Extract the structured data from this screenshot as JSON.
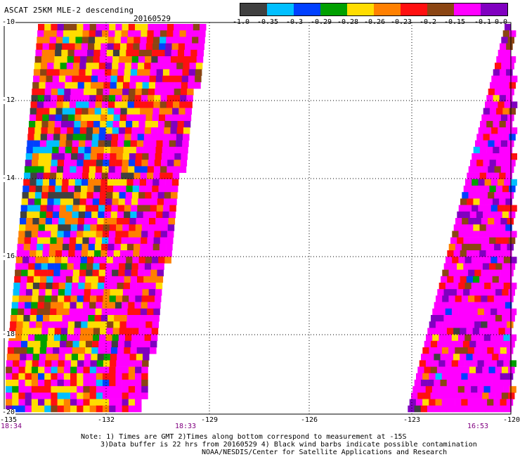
{
  "header": {
    "title": "ASCAT 25KM MLE-2 descending",
    "date": "20160529"
  },
  "colorbar": {
    "colors": [
      "#404040",
      "#00bfff",
      "#0040ff",
      "#00a000",
      "#ffdd00",
      "#ff8000",
      "#ff1010",
      "#8b4513",
      "#ff00ff",
      "#8000c0"
    ],
    "labels": [
      "-1.0",
      "-0.35",
      "-0.3",
      "-0.29",
      "-0.28",
      "-0.26",
      "-0.23",
      "-0.2",
      "-0.15",
      "-0.1",
      "0.0"
    ]
  },
  "axes": {
    "lat_ticks": [
      "-10",
      "-12",
      "-14",
      "-16",
      "-18",
      "-20"
    ],
    "lon_ticks": [
      "-135",
      "-132",
      "-129",
      "-126",
      "-123",
      "-120"
    ]
  },
  "pass_times": [
    "18:34",
    "18:33",
    "16:53"
  ],
  "notes": [
    "Note: 1) Times are GMT 2)Times along bottom correspond to measurement at -15S",
    "3)Data buffer is 22 hrs from 20160529 4) Black wind barbs indicate possible contamination",
    "NOAA/NESDIS/Center for Satellite Applications and Research"
  ]
}
